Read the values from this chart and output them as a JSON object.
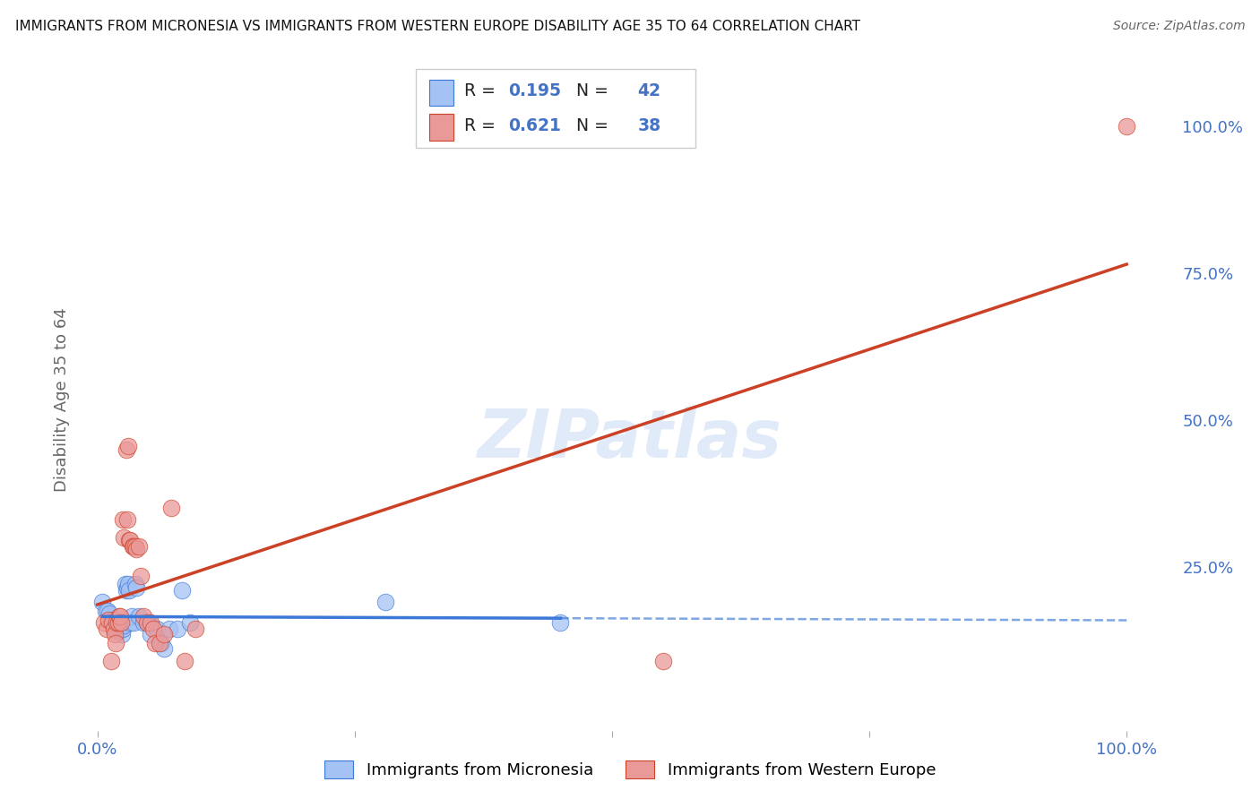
{
  "title": "IMMIGRANTS FROM MICRONESIA VS IMMIGRANTS FROM WESTERN EUROPE DISABILITY AGE 35 TO 64 CORRELATION CHART",
  "source": "Source: ZipAtlas.com",
  "tick_color": "#4472c4",
  "ylabel": "Disability Age 35 to 64",
  "watermark_text": "ZIPatlas",
  "blue_R": 0.195,
  "blue_N": 42,
  "pink_R": 0.621,
  "pink_N": 38,
  "blue_color": "#a4c2f4",
  "pink_color": "#ea9999",
  "blue_line_color": "#3c78d8",
  "pink_line_color": "#cc4125",
  "blue_scatter": [
    [
      0.5,
      19.0
    ],
    [
      0.8,
      17.5
    ],
    [
      1.0,
      17.5
    ],
    [
      1.2,
      17.0
    ],
    [
      1.3,
      15.5
    ],
    [
      1.4,
      15.5
    ],
    [
      1.5,
      16.0
    ],
    [
      1.6,
      15.0
    ],
    [
      1.7,
      14.5
    ],
    [
      1.8,
      15.5
    ],
    [
      1.9,
      14.5
    ],
    [
      2.0,
      14.0
    ],
    [
      2.1,
      15.5
    ],
    [
      2.2,
      14.5
    ],
    [
      2.3,
      15.5
    ],
    [
      2.4,
      13.5
    ],
    [
      2.5,
      14.5
    ],
    [
      2.6,
      15.0
    ],
    [
      2.7,
      22.0
    ],
    [
      2.8,
      21.0
    ],
    [
      2.9,
      21.5
    ],
    [
      3.0,
      22.0
    ],
    [
      3.1,
      21.0
    ],
    [
      3.2,
      15.5
    ],
    [
      3.3,
      16.5
    ],
    [
      3.5,
      15.5
    ],
    [
      3.7,
      22.0
    ],
    [
      3.8,
      21.5
    ],
    [
      4.0,
      16.5
    ],
    [
      4.5,
      15.5
    ],
    [
      4.8,
      15.5
    ],
    [
      5.0,
      15.5
    ],
    [
      5.2,
      13.5
    ],
    [
      5.8,
      14.5
    ],
    [
      6.2,
      12.0
    ],
    [
      6.5,
      11.0
    ],
    [
      7.0,
      14.5
    ],
    [
      7.8,
      14.5
    ],
    [
      8.2,
      21.0
    ],
    [
      9.0,
      15.5
    ],
    [
      28.0,
      19.0
    ],
    [
      45.0,
      15.5
    ]
  ],
  "pink_scatter": [
    [
      0.6,
      15.5
    ],
    [
      0.9,
      14.5
    ],
    [
      1.1,
      16.0
    ],
    [
      1.3,
      9.0
    ],
    [
      1.4,
      15.5
    ],
    [
      1.6,
      14.5
    ],
    [
      1.7,
      13.5
    ],
    [
      1.8,
      12.0
    ],
    [
      1.9,
      15.5
    ],
    [
      2.0,
      15.5
    ],
    [
      2.1,
      16.5
    ],
    [
      2.2,
      16.5
    ],
    [
      2.3,
      15.5
    ],
    [
      2.5,
      33.0
    ],
    [
      2.6,
      30.0
    ],
    [
      2.8,
      45.0
    ],
    [
      2.9,
      33.0
    ],
    [
      3.0,
      45.5
    ],
    [
      3.1,
      29.5
    ],
    [
      3.2,
      29.5
    ],
    [
      3.4,
      28.5
    ],
    [
      3.5,
      28.5
    ],
    [
      3.7,
      28.5
    ],
    [
      3.8,
      28.0
    ],
    [
      4.0,
      28.5
    ],
    [
      4.2,
      23.5
    ],
    [
      4.5,
      16.5
    ],
    [
      4.8,
      15.5
    ],
    [
      5.2,
      15.5
    ],
    [
      5.4,
      14.5
    ],
    [
      5.6,
      12.0
    ],
    [
      6.0,
      12.0
    ],
    [
      6.5,
      13.5
    ],
    [
      7.2,
      35.0
    ],
    [
      8.5,
      9.0
    ],
    [
      9.5,
      14.5
    ],
    [
      55.0,
      9.0
    ],
    [
      100.0,
      100.0
    ]
  ],
  "xlim": [
    -1.5,
    105.0
  ],
  "ylim": [
    -3.0,
    110.0
  ],
  "xtick_positions": [
    0.0,
    25.0,
    50.0,
    75.0,
    100.0
  ],
  "xtick_labels": [
    "0.0%",
    "",
    "",
    "",
    "100.0%"
  ],
  "ytick_positions": [
    0.0,
    25.0,
    50.0,
    75.0,
    100.0
  ],
  "ytick_labels": [
    "",
    "25.0%",
    "50.0%",
    "75.0%",
    "100.0%"
  ],
  "background_color": "#ffffff",
  "grid_color": "#d0d0d0"
}
